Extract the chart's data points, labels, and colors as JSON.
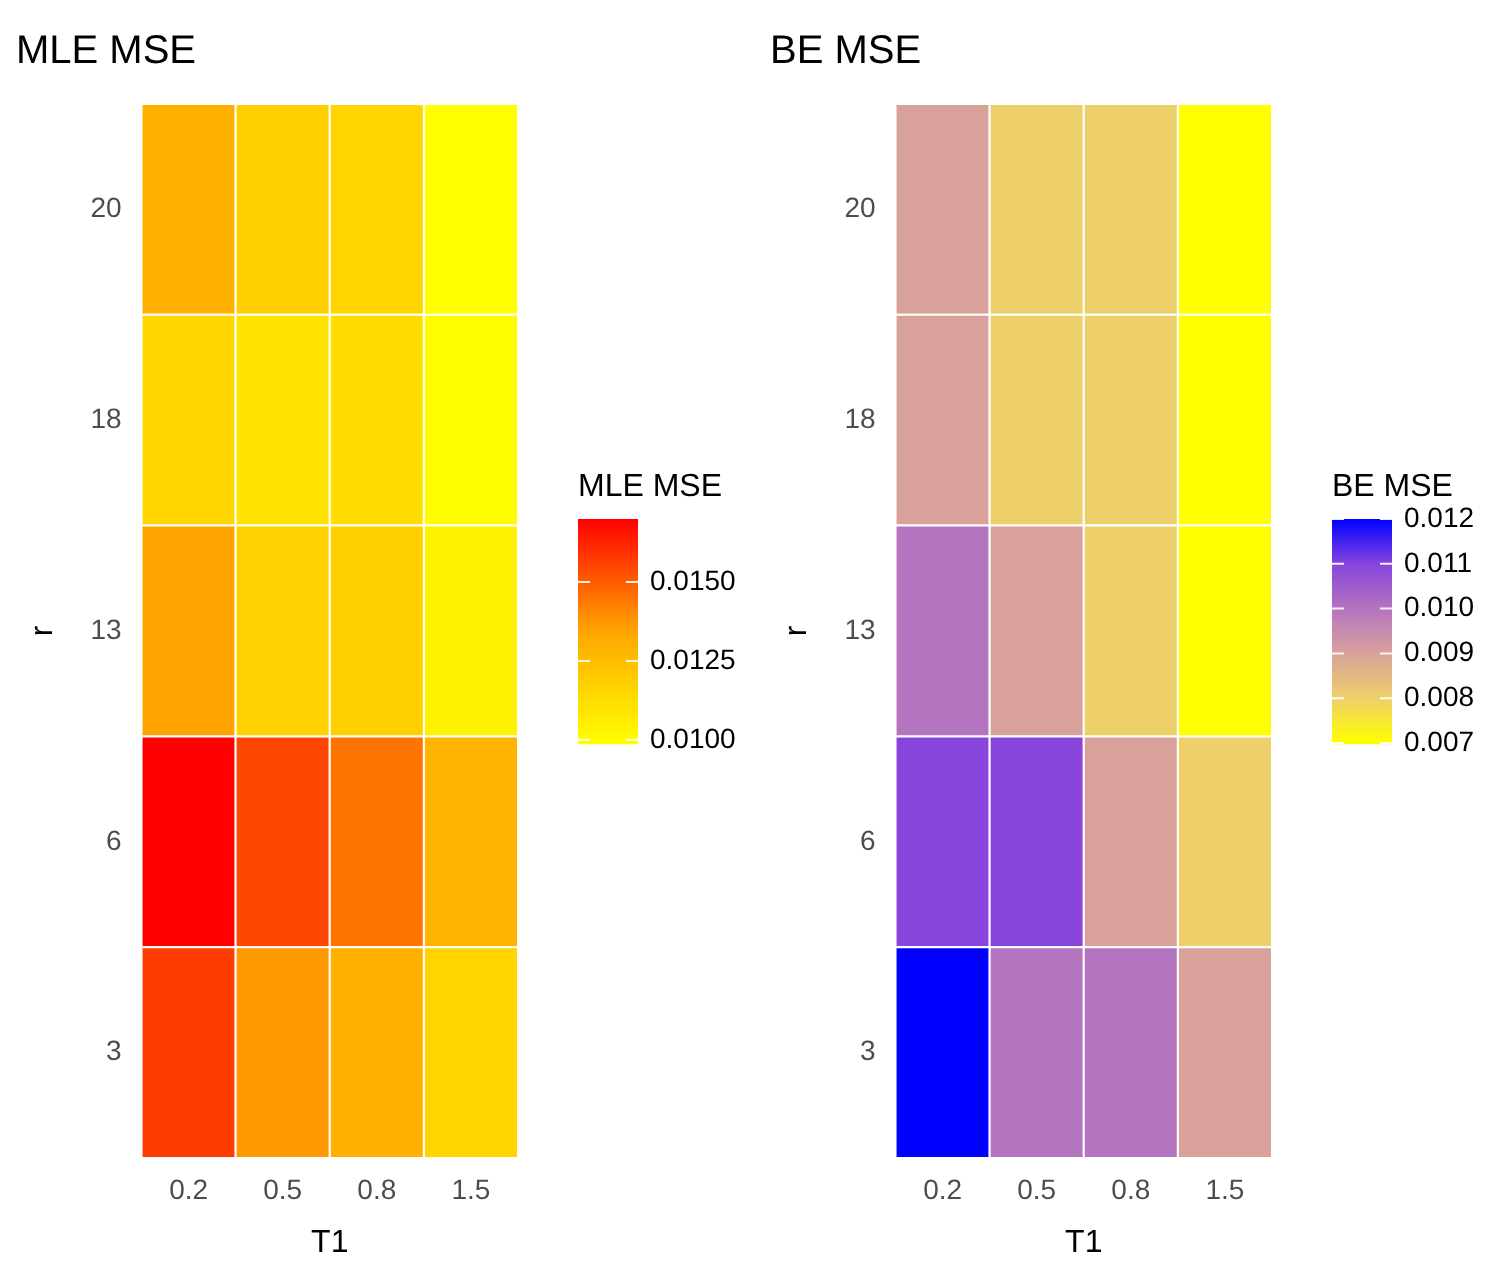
{
  "chart_data": [
    {
      "type": "heatmap",
      "title": "MLE MSE",
      "xlabel": "T1",
      "ylabel": "r",
      "clabel": "MLE MSE",
      "categories": [
        "0.2",
        "0.5",
        "0.8",
        "1.5"
      ],
      "y_categories": [
        "20",
        "18",
        "13",
        "6",
        "3"
      ],
      "cells": [
        [
          0.013,
          0.0118,
          0.0116,
          0.0099
        ],
        [
          0.0115,
          0.011,
          0.0113,
          0.01
        ],
        [
          0.0135,
          0.0117,
          0.0118,
          0.0104
        ],
        [
          0.017,
          0.0155,
          0.0145,
          0.0128
        ],
        [
          0.0157,
          0.0137,
          0.013,
          0.0116
        ]
      ],
      "colors": [
        "#ffff00",
        "#ffa500",
        "#ff0000"
      ],
      "clim": [
        0.0099,
        0.017
      ],
      "cticks": [
        {
          "value": 0.01,
          "label": "0.0100"
        },
        {
          "value": 0.0125,
          "label": "0.0125"
        },
        {
          "value": 0.015,
          "label": "0.0150"
        }
      ]
    },
    {
      "type": "heatmap",
      "title": "BE MSE",
      "xlabel": "T1",
      "ylabel": "r",
      "clabel": "BE MSE",
      "categories": [
        "0.2",
        "0.5",
        "0.8",
        "1.5"
      ],
      "y_categories": [
        "20",
        "18",
        "13",
        "6",
        "3"
      ],
      "cells": [
        [
          0.009,
          0.008,
          0.008,
          0.007
        ],
        [
          0.009,
          0.008,
          0.008,
          0.007
        ],
        [
          0.01,
          0.009,
          0.008,
          0.007
        ],
        [
          0.011,
          0.011,
          0.009,
          0.008
        ],
        [
          0.012,
          0.01,
          0.01,
          0.009
        ]
      ],
      "colors": [
        "#ffff00",
        "#eed06a",
        "#d8a29a",
        "#b574c0",
        "#8844dd",
        "#0000ff"
      ],
      "clim": [
        0.007,
        0.012
      ],
      "cticks": [
        0.007,
        0.008,
        0.009,
        {
          "value": 0.01,
          "label": "0.010"
        },
        0.011,
        0.012
      ]
    }
  ]
}
